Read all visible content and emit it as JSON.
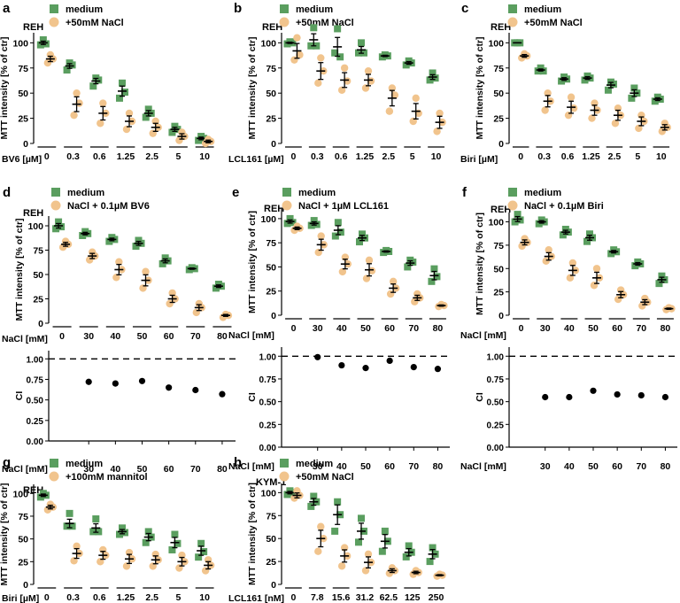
{
  "figure": {
    "colors": {
      "medium": "#5a9e5f",
      "treat": "#f1c48d",
      "ink": "#000000",
      "ci": "#000000"
    }
  },
  "chart_data": [
    {
      "id": "a",
      "panel_label": "a",
      "type": "scatter",
      "cell_line": "REH",
      "ylabel": "MTT intensity [% of ctr]",
      "xlabel": "BV6 [µM]",
      "categories": [
        "0",
        "0.3",
        "0.6",
        "1.25",
        "2.5",
        "5",
        "10"
      ],
      "ylim": [
        0,
        110
      ],
      "yticks": [
        0,
        25,
        50,
        75,
        100
      ],
      "series": [
        {
          "name": "medium",
          "color": "#5a9e5f",
          "marker": "square",
          "means": [
            100,
            77,
            62,
            52,
            30,
            14,
            5
          ],
          "points": [
            [
              98,
              103,
              99
            ],
            [
              73,
              80,
              78
            ],
            [
              57,
              65,
              63
            ],
            [
              45,
              60,
              51
            ],
            [
              26,
              34,
              30
            ],
            [
              11,
              17,
              14
            ],
            [
              3,
              7,
              5
            ]
          ]
        },
        {
          "name": "+50mM NaCl",
          "color": "#f1c48d",
          "marker": "circle",
          "means": [
            84,
            39,
            30,
            22,
            16,
            7,
            2
          ],
          "points": [
            [
              80,
              88,
              84
            ],
            [
              28,
              50,
              40
            ],
            [
              20,
              40,
              30
            ],
            [
              14,
              30,
              22
            ],
            [
              10,
              22,
              16
            ],
            [
              3,
              11,
              7
            ],
            [
              0,
              4,
              2
            ]
          ]
        }
      ]
    },
    {
      "id": "b",
      "panel_label": "b",
      "type": "scatter",
      "cell_line": "REH",
      "ylabel": "MTT intensity [% of ctr]",
      "xlabel": "LCL161 [µM]",
      "categories": [
        "0",
        "0.3",
        "0.6",
        "1.25",
        "2.5",
        "5",
        "10"
      ],
      "ylim": [
        0,
        110
      ],
      "yticks": [
        0,
        25,
        50,
        75,
        100
      ],
      "series": [
        {
          "name": "medium",
          "color": "#5a9e5f",
          "marker": "square",
          "means": [
            100,
            103,
            96,
            93,
            87,
            80,
            66
          ],
          "points": [
            [
              99,
              101,
              100
            ],
            [
              97,
              115,
              97
            ],
            [
              90,
              114,
              86
            ],
            [
              90,
              100,
              90
            ],
            [
              86,
              88,
              87
            ],
            [
              78,
              82,
              80
            ],
            [
              63,
              70,
              65
            ]
          ]
        },
        {
          "name": "+50mM NaCl",
          "color": "#f1c48d",
          "marker": "circle",
          "means": [
            92,
            72,
            63,
            63,
            45,
            32,
            21
          ],
          "points": [
            [
              83,
              105,
              88
            ],
            [
              60,
              85,
              72
            ],
            [
              53,
              75,
              62
            ],
            [
              55,
              72,
              62
            ],
            [
              32,
              55,
              48
            ],
            [
              22,
              45,
              30
            ],
            [
              12,
              30,
              21
            ]
          ]
        }
      ]
    },
    {
      "id": "c",
      "panel_label": "c",
      "type": "scatter",
      "cell_line": "REH",
      "ylabel": "MTT intensity [% of ctr]",
      "xlabel": "Biri [µM]",
      "categories": [
        "0",
        "0.3",
        "0.6",
        "1.25",
        "2.5",
        "5",
        "10"
      ],
      "ylim": [
        0,
        110
      ],
      "yticks": [
        0,
        25,
        50,
        75,
        100
      ],
      "series": [
        {
          "name": "medium",
          "color": "#5a9e5f",
          "marker": "square",
          "means": [
            100,
            73,
            64,
            65,
            58,
            50,
            44
          ],
          "points": [
            [
              100,
              100,
              100
            ],
            [
              72,
              75,
              72
            ],
            [
              62,
              66,
              64
            ],
            [
              63,
              67,
              65
            ],
            [
              53,
              61,
              59
            ],
            [
              45,
              55,
              50
            ],
            [
              42,
              46,
              44
            ]
          ]
        },
        {
          "name": "+50mM NaCl",
          "color": "#f1c48d",
          "marker": "circle",
          "means": [
            87,
            42,
            36,
            33,
            28,
            22,
            16
          ],
          "points": [
            [
              85,
              89,
              87
            ],
            [
              33,
              50,
              42
            ],
            [
              28,
              46,
              35
            ],
            [
              25,
              40,
              33
            ],
            [
              20,
              35,
              28
            ],
            [
              15,
              28,
              22
            ],
            [
              12,
              20,
              16
            ]
          ]
        }
      ]
    },
    {
      "id": "d",
      "panel_label": "d",
      "type": "scatter",
      "cell_line": "REH",
      "ylabel": "MTT intensity [% of ctr]",
      "xlabel": "NaCl [mM]",
      "categories": [
        "0",
        "30",
        "40",
        "50",
        "60",
        "70",
        "80"
      ],
      "ylim": [
        0,
        110
      ],
      "yticks": [
        0,
        25,
        50,
        75,
        100
      ],
      "series": [
        {
          "name": "medium",
          "color": "#5a9e5f",
          "marker": "square",
          "means": [
            100,
            92,
            86,
            82,
            64,
            56,
            38
          ],
          "points": [
            [
              97,
              104,
              99
            ],
            [
              90,
              94,
              92
            ],
            [
              84,
              88,
              86
            ],
            [
              79,
              85,
              82
            ],
            [
              61,
              67,
              64
            ],
            [
              55,
              57,
              56
            ],
            [
              36,
              40,
              38
            ]
          ]
        },
        {
          "name": "NaCl + 0.1µM BV6",
          "color": "#f1c48d",
          "marker": "circle",
          "means": [
            81,
            69,
            55,
            44,
            25,
            16,
            8
          ],
          "points": [
            [
              78,
              84,
              81
            ],
            [
              65,
              73,
              69
            ],
            [
              47,
              63,
              55
            ],
            [
              36,
              53,
              44
            ],
            [
              20,
              31,
              25
            ],
            [
              11,
              20,
              16
            ],
            [
              6,
              9,
              8
            ]
          ]
        }
      ],
      "ci": {
        "ylabel": "CI",
        "xlabel": "NaCl [mM]",
        "categories": [
          "30",
          "40",
          "50",
          "60",
          "70",
          "80"
        ],
        "values": [
          0.72,
          0.7,
          0.73,
          0.65,
          0.62,
          0.57
        ],
        "yticks": [
          0.0,
          0.25,
          0.5,
          0.75,
          1.0
        ],
        "ylim": [
          0,
          1.1
        ],
        "reference": 1.0
      }
    },
    {
      "id": "e",
      "panel_label": "e",
      "type": "scatter",
      "cell_line": "REH",
      "ylabel": "MTT intensity [% of ctr]",
      "xlabel": "NaCl [mM]",
      "categories": [
        "0",
        "30",
        "40",
        "50",
        "60",
        "70",
        "80"
      ],
      "ylim": [
        0,
        110
      ],
      "yticks": [
        0,
        25,
        50,
        75,
        100
      ],
      "series": [
        {
          "name": "medium",
          "color": "#5a9e5f",
          "marker": "square",
          "means": [
            97,
            95,
            88,
            80,
            66,
            54,
            41
          ],
          "points": [
            [
              95,
              100,
              96
            ],
            [
              93,
              98,
              94
            ],
            [
              82,
              96,
              86
            ],
            [
              76,
              84,
              80
            ],
            [
              65,
              67,
              66
            ],
            [
              50,
              57,
              55
            ],
            [
              35,
              48,
              40
            ]
          ]
        },
        {
          "name": "NaCl + 1µM LCL161",
          "color": "#f1c48d",
          "marker": "circle",
          "means": [
            90,
            73,
            53,
            47,
            28,
            18,
            10
          ],
          "points": [
            [
              88,
              92,
              90
            ],
            [
              65,
              82,
              73
            ],
            [
              45,
              60,
              53
            ],
            [
              38,
              57,
              46
            ],
            [
              22,
              35,
              28
            ],
            [
              14,
              22,
              18
            ],
            [
              9,
              11,
              10
            ]
          ]
        }
      ],
      "ci": {
        "ylabel": "CI",
        "xlabel": "NaCl [mM]",
        "categories": [
          "30",
          "40",
          "50",
          "60",
          "70",
          "80"
        ],
        "values": [
          0.99,
          0.9,
          0.87,
          0.95,
          0.88,
          0.86
        ],
        "yticks": [
          0.0,
          0.25,
          0.5,
          0.75,
          1.0
        ],
        "ylim": [
          0,
          1.1
        ],
        "reference": 1.0
      }
    },
    {
      "id": "f",
      "panel_label": "f",
      "type": "scatter",
      "cell_line": "REH",
      "ylabel": "MTT intensity [% of ctr]",
      "xlabel": "NaCl [mM]",
      "categories": [
        "0",
        "30",
        "40",
        "50",
        "60",
        "70",
        "80"
      ],
      "ylim": [
        0,
        110
      ],
      "yticks": [
        0,
        25,
        50,
        75,
        100
      ],
      "series": [
        {
          "name": "medium",
          "color": "#5a9e5f",
          "marker": "square",
          "means": [
            103,
            100,
            89,
            83,
            68,
            55,
            38
          ],
          "points": [
            [
              100,
              108,
              102
            ],
            [
              98,
              102,
              100
            ],
            [
              86,
              92,
              89
            ],
            [
              79,
              87,
              83
            ],
            [
              66,
              70,
              68
            ],
            [
              53,
              57,
              55
            ],
            [
              34,
              42,
              38
            ]
          ]
        },
        {
          "name": "NaCl + 0.1µM Biri",
          "color": "#f1c48d",
          "marker": "circle",
          "means": [
            78,
            63,
            48,
            40,
            22,
            14,
            7
          ],
          "points": [
            [
              74,
              82,
              78
            ],
            [
              58,
              70,
              63
            ],
            [
              40,
              56,
              48
            ],
            [
              32,
              50,
              40
            ],
            [
              17,
              27,
              22
            ],
            [
              10,
              18,
              14
            ],
            [
              6,
              8,
              7
            ]
          ]
        }
      ],
      "ci": {
        "ylabel": "CI",
        "xlabel": "NaCl [mM]",
        "categories": [
          "30",
          "40",
          "50",
          "60",
          "70",
          "80"
        ],
        "values": [
          0.55,
          0.55,
          0.62,
          0.58,
          0.57,
          0.55
        ],
        "yticks": [
          0.0,
          0.25,
          0.5,
          0.75,
          1.0
        ],
        "ylim": [
          0,
          1.1
        ],
        "reference": 1.0
      }
    },
    {
      "id": "g",
      "panel_label": "g",
      "type": "scatter",
      "cell_line": "REH",
      "ylabel": "MTT intensity [% of ctr]",
      "xlabel": "Biri [µM]",
      "categories": [
        "0",
        "0.3",
        "0.6",
        "1.25",
        "2.5",
        "5",
        "10"
      ],
      "ylim": [
        0,
        110
      ],
      "yticks": [
        0,
        25,
        50,
        75,
        100
      ],
      "series": [
        {
          "name": "medium",
          "color": "#5a9e5f",
          "marker": "square",
          "means": [
            98,
            67,
            62,
            58,
            52,
            46,
            37
          ],
          "points": [
            [
              96,
              100,
              98
            ],
            [
              64,
              78,
              64
            ],
            [
              58,
              72,
              58
            ],
            [
              55,
              62,
              57
            ],
            [
              46,
              58,
              52
            ],
            [
              38,
              55,
              45
            ],
            [
              30,
              45,
              36
            ]
          ]
        },
        {
          "name": "+100mM mannitol",
          "color": "#f1c48d",
          "marker": "circle",
          "means": [
            85,
            34,
            32,
            28,
            27,
            25,
            21
          ],
          "points": [
            [
              82,
              88,
              85
            ],
            [
              26,
              42,
              34
            ],
            [
              25,
              38,
              32
            ],
            [
              20,
              35,
              28
            ],
            [
              20,
              33,
              27
            ],
            [
              18,
              32,
              25
            ],
            [
              15,
              27,
              21
            ]
          ]
        }
      ]
    },
    {
      "id": "h",
      "panel_label": "h",
      "type": "scatter",
      "cell_line": "KYM-1",
      "ylabel": "MTT intensity [% of ctr]",
      "xlabel": "LCL161 [nM]",
      "categories": [
        "0",
        "7.8",
        "15.6",
        "31.2",
        "62.5",
        "125",
        "250"
      ],
      "ylim": [
        0,
        110
      ],
      "yticks": [
        0,
        25,
        50,
        75,
        100
      ],
      "series": [
        {
          "name": "medium",
          "color": "#5a9e5f",
          "marker": "square",
          "means": [
            100,
            90,
            76,
            58,
            47,
            35,
            33
          ],
          "points": [
            [
              98,
              102,
              100
            ],
            [
              85,
              96,
              90
            ],
            [
              58,
              90,
              76
            ],
            [
              46,
              72,
              58
            ],
            [
              36,
              58,
              47
            ],
            [
              30,
              42,
              35
            ],
            [
              25,
              40,
              33
            ]
          ]
        },
        {
          "name": "+50mM NaCl",
          "color": "#f1c48d",
          "marker": "circle",
          "means": [
            97,
            50,
            31,
            24,
            15,
            13,
            10
          ],
          "points": [
            [
              94,
              102,
              97
            ],
            [
              36,
              63,
              50
            ],
            [
              20,
              40,
              31
            ],
            [
              15,
              33,
              24
            ],
            [
              12,
              18,
              15
            ],
            [
              11,
              15,
              13
            ],
            [
              9,
              11,
              10
            ]
          ]
        }
      ]
    }
  ]
}
